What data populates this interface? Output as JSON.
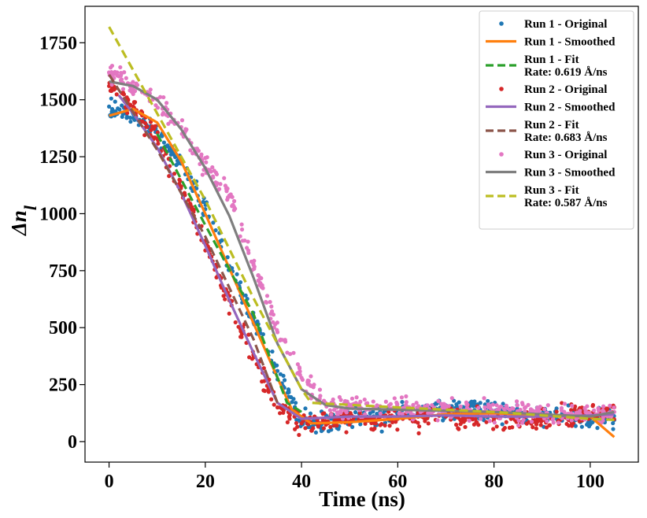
{
  "chart_data": {
    "type": "scatter",
    "title": "",
    "xlabel": "Time (ns)",
    "ylabel": "Δn",
    "ylabel_subscript": "l",
    "xlim": [
      -5,
      110
    ],
    "ylim": [
      -90,
      1910
    ],
    "xticks": [
      0,
      20,
      40,
      60,
      80,
      100
    ],
    "yticks": [
      0,
      250,
      500,
      750,
      1000,
      1250,
      1500,
      1750
    ],
    "grid": false,
    "legend_position": "top-right",
    "series": [
      {
        "name": "Run 1 - Original",
        "kind": "points",
        "color": "#1f77b4",
        "x": [
          0,
          5,
          10,
          15,
          20,
          25,
          30,
          35,
          40,
          45,
          50,
          55,
          60,
          65,
          70,
          75,
          80,
          85,
          90,
          95,
          100,
          105
        ],
        "y": [
          1470,
          1420,
          1360,
          1220,
          1020,
          770,
          550,
          310,
          95,
          80,
          95,
          110,
          120,
          130,
          135,
          140,
          135,
          125,
          115,
          110,
          100,
          95
        ]
      },
      {
        "name": "Run 1 - Smoothed",
        "kind": "line",
        "color": "#ff7f0e",
        "dash": "",
        "x": [
          0,
          5,
          10,
          15,
          20,
          25,
          30,
          35,
          38,
          42,
          50,
          60,
          70,
          80,
          90,
          100,
          105
        ],
        "y": [
          1430,
          1460,
          1400,
          1230,
          1000,
          760,
          520,
          280,
          140,
          80,
          85,
          100,
          120,
          125,
          115,
          110,
          20
        ]
      },
      {
        "name": "Run 1 - Fit",
        "label_lines": [
          "Run 1 - Fit",
          "Rate: 0.619 Å/ns"
        ],
        "kind": "line",
        "color": "#2ca02c",
        "dash": "11,6",
        "x": [
          10,
          20,
          30,
          37,
          40
        ],
        "y": [
          1350,
          950,
          560,
          170,
          130
        ]
      },
      {
        "name": "Run 2 - Original",
        "kind": "points",
        "color": "#d62728",
        "x": [
          0,
          5,
          10,
          15,
          20,
          25,
          30,
          35,
          40,
          45,
          50,
          55,
          60,
          65,
          70,
          75,
          80,
          85,
          90,
          95,
          100,
          105
        ],
        "y": [
          1560,
          1470,
          1330,
          1120,
          880,
          620,
          380,
          150,
          80,
          90,
          95,
          100,
          100,
          110,
          110,
          105,
          100,
          100,
          105,
          110,
          120,
          150
        ]
      },
      {
        "name": "Run 2 - Smoothed",
        "kind": "line",
        "color": "#9467bd",
        "dash": "",
        "x": [
          2,
          5,
          10,
          15,
          20,
          25,
          30,
          35,
          40,
          50,
          60,
          70,
          80,
          90,
          100,
          105
        ],
        "y": [
          1520,
          1440,
          1290,
          1090,
          860,
          620,
          390,
          170,
          100,
          110,
          110,
          115,
          110,
          110,
          115,
          120
        ]
      },
      {
        "name": "Run 2 - Fit",
        "label_lines": [
          "Run 2 - Fit",
          "Rate: 0.683 Å/ns"
        ],
        "kind": "line",
        "color": "#8c564b",
        "dash": "11,6",
        "x": [
          0,
          10,
          20,
          30,
          35
        ],
        "y": [
          1610,
          1280,
          900,
          450,
          170
        ]
      },
      {
        "name": "Run 3 - Original",
        "kind": "points",
        "color": "#e377c2",
        "x": [
          0,
          5,
          10,
          15,
          20,
          25,
          30,
          35,
          40,
          45,
          50,
          55,
          60,
          65,
          70,
          75,
          80,
          85,
          90,
          95,
          100,
          105
        ],
        "y": [
          1620,
          1560,
          1500,
          1380,
          1200,
          1080,
          780,
          480,
          280,
          170,
          155,
          150,
          145,
          145,
          145,
          140,
          135,
          130,
          120,
          120,
          120,
          130
        ]
      },
      {
        "name": "Run 3 - Smoothed",
        "kind": "line",
        "color": "#7f7f7f",
        "dash": "",
        "x": [
          0,
          5,
          10,
          15,
          20,
          25,
          30,
          35,
          40,
          45,
          50,
          60,
          70,
          80,
          90,
          100,
          105
        ],
        "y": [
          1580,
          1560,
          1500,
          1370,
          1200,
          990,
          720,
          430,
          230,
          160,
          145,
          140,
          135,
          130,
          120,
          110,
          130
        ]
      },
      {
        "name": "Run 3 - Fit",
        "label_lines": [
          "Run 3 - Fit",
          "Rate: 0.587 Å/ns"
        ],
        "kind": "line",
        "color": "#bcbd22",
        "dash": "11,6",
        "x": [
          0,
          10,
          20,
          30,
          40,
          42,
          60,
          80,
          100,
          105
        ],
        "y": [
          1820,
          1440,
          1060,
          630,
          230,
          170,
          150,
          130,
          100,
          95
        ]
      }
    ]
  }
}
